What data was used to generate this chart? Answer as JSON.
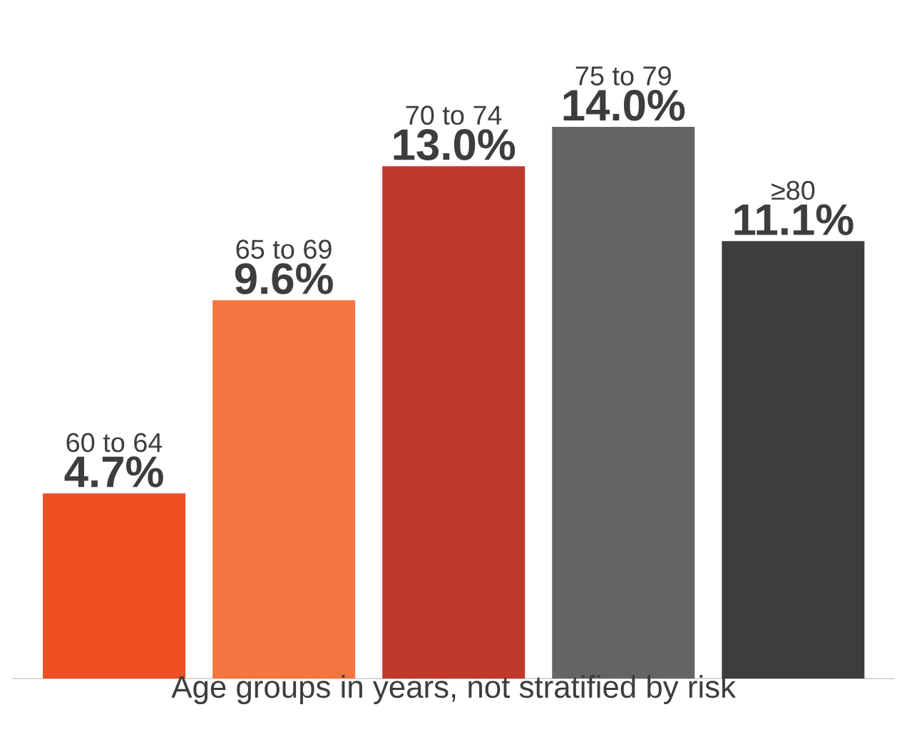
{
  "chart_data": {
    "type": "bar",
    "xlabel": "Age groups in years, not stratified by risk",
    "categories": [
      "60 to 64",
      "65 to 69",
      "70 to 74",
      "75 to 79",
      "≥80"
    ],
    "values": [
      4.7,
      9.6,
      13.0,
      14.0,
      11.1
    ],
    "value_labels": [
      "4.7%",
      "9.6%",
      "13.0%",
      "14.0%",
      "11.1%"
    ],
    "colors": [
      "#f04e23",
      "#f47540",
      "#c0392b",
      "#636466",
      "#3d3d3f"
    ]
  }
}
